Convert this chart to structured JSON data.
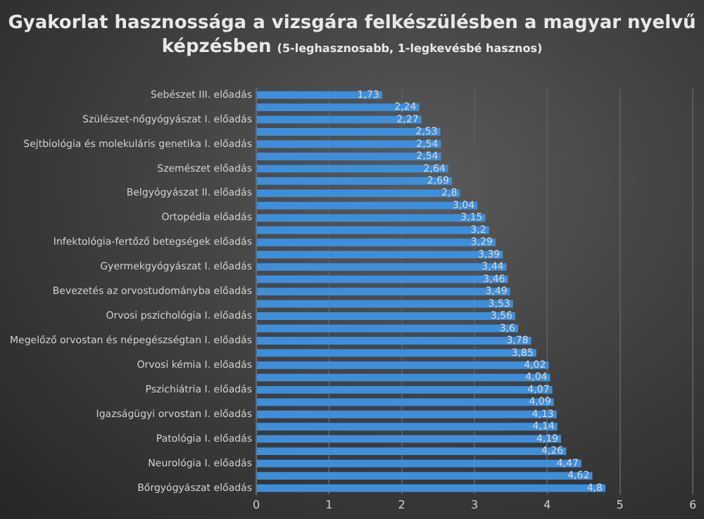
{
  "chart_data": {
    "type": "bar",
    "orientation": "horizontal",
    "title": "Gyakorlat hasznossága a vizsgára felkészülésben a magyar nyelvű képzésben",
    "subtitle": "(5-leghasznosabb, 1-legkevésbé hasznos)",
    "categories": [
      "Sebészet III. előadás",
      null,
      "Szülészet-nőgyógyászat I. előadás",
      null,
      "Sejtbiológia és molekuláris genetika I. előadás",
      null,
      "Szemészet előadás",
      null,
      "Belgyógyászat II. előadás",
      null,
      "Ortopédia előadás",
      null,
      "Infektológia-fertőző betegségek előadás",
      null,
      "Gyermekgyógyászat I. előadás",
      null,
      "Bevezetés az orvostudományba előadás",
      null,
      "Orvosi pszichológia I. előadás",
      null,
      "Megelőző orvostan és népegészségtan I. előadás",
      null,
      "Orvosi kémia I. előadás",
      null,
      "Pszichiátria I. előadás",
      null,
      "Igazságügyi orvostan I. előadás",
      null,
      "Patológia I. előadás",
      null,
      "Neurológia I. előadás",
      null,
      "Bőrgyógyászat előadás"
    ],
    "values": [
      1.73,
      2.24,
      2.27,
      2.53,
      2.54,
      2.54,
      2.64,
      2.69,
      2.8,
      3.04,
      3.15,
      3.2,
      3.29,
      3.39,
      3.44,
      3.46,
      3.49,
      3.53,
      3.56,
      3.6,
      3.78,
      3.85,
      4.02,
      4.04,
      4.07,
      4.09,
      4.13,
      4.14,
      4.19,
      4.26,
      4.47,
      4.62,
      4.8
    ],
    "value_labels": [
      "1,73",
      "2,24",
      "2,27",
      "2,53",
      "2,54",
      "2,54",
      "2,64",
      "2,69",
      "2,8",
      "3,04",
      "3,15",
      "3,2",
      "3,29",
      "3,39",
      "3,44",
      "3,46",
      "3,49",
      "3,53",
      "3,56",
      "3,6",
      "3,78",
      "3,85",
      "4,02",
      "4,04",
      "4,07",
      "4,09",
      "4,13",
      "4,14",
      "4,19",
      "4,26",
      "4,47",
      "4,62",
      "4,8"
    ],
    "color": "#3d8fdc",
    "xlim": [
      0,
      6
    ],
    "xticks": [
      0,
      1,
      2,
      3,
      4,
      5,
      6
    ],
    "grid": "x",
    "legend": false
  }
}
